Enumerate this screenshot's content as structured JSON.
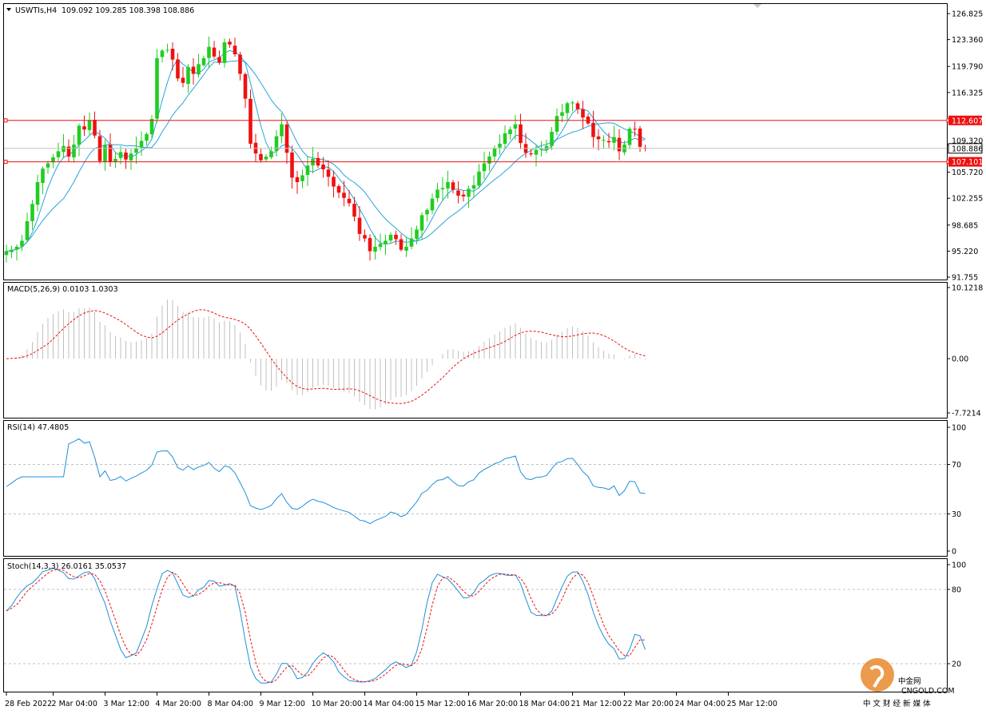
{
  "header": {
    "symbol": "USWTIs,H4",
    "ohlc": "109.092 109.285 108.398 108.886"
  },
  "colors": {
    "bull": "#22cc22",
    "bear": "#ee1111",
    "ma": "#29a3dd",
    "level": "#ee1111",
    "signal": "#ee1111",
    "rsi": "#1e90d8",
    "hist": "#c0c0c0"
  },
  "watermark": {
    "name": "中金网",
    "domain": "CNGOLD.COM",
    "slogan": "中 文 财 经 新 媒 体"
  },
  "chart_data": [
    {
      "type": "candlestick",
      "name": "USWTIs,H4",
      "ylim": [
        91.755,
        126.825
      ],
      "yticks": [
        "126.825",
        "123.360",
        "119.790",
        "116.325",
        "112.607",
        "109.320",
        "108.886",
        "107.101",
        "105.720",
        "102.255",
        "98.685",
        "95.220",
        "91.755"
      ],
      "current_price": "108.886",
      "levels": [
        {
          "value": 112.607,
          "label": "112.607"
        },
        {
          "value": 107.101,
          "label": "107.101"
        }
      ],
      "closes": [
        95.2,
        95.4,
        95.8,
        96.6,
        99.2,
        101.5,
        104.4,
        106.2,
        106.9,
        107.7,
        108.5,
        109.2,
        107.8,
        109.4,
        111.9,
        111.4,
        112.6,
        110.6,
        107.2,
        109.3,
        107.1,
        107.5,
        108.4,
        107.4,
        108.2,
        108.9,
        109.9,
        110.8,
        112.8,
        120.9,
        121.9,
        122.0,
        120.7,
        118.2,
        117.6,
        119.7,
        118.8,
        120.1,
        120.9,
        122.4,
        121.1,
        120.3,
        123.0,
        122.7,
        121.4,
        118.8,
        115.5,
        109.5,
        108.2,
        107.3,
        107.8,
        108.5,
        110.5,
        112.1,
        108.3,
        105.0,
        104.4,
        105.3,
        106.6,
        107.5,
        106.6,
        106.1,
        105.1,
        103.8,
        103.0,
        102.3,
        101.6,
        99.8,
        97.5,
        96.9,
        95.2,
        95.8,
        96.2,
        96.6,
        97.4,
        96.8,
        95.4,
        95.8,
        96.9,
        98.1,
        100.0,
        100.7,
        102.2,
        103.4,
        103.6,
        104.4,
        103.4,
        102.6,
        102.5,
        103.5,
        104.0,
        105.8,
        106.9,
        107.8,
        108.9,
        109.5,
        110.9,
        111.4,
        112.1,
        109.6,
        108.3,
        108.1,
        108.7,
        108.8,
        109.2,
        111.1,
        113.2,
        113.7,
        114.9,
        115.0,
        114.1,
        113.0,
        112.2,
        110.4,
        110.1,
        110.0,
        109.7,
        110.4,
        108.5,
        109.4,
        111.5,
        111.4,
        109.1,
        108.9
      ],
      "x_labels": [
        {
          "i": 0,
          "label": "28 Feb 2022"
        },
        {
          "i": 9,
          "label": "2 Mar 04:00"
        },
        {
          "i": 19,
          "label": "3 Mar 12:00"
        },
        {
          "i": 29,
          "label": "4 Mar 20:00"
        },
        {
          "i": 39,
          "label": "8 Mar 04:00"
        },
        {
          "i": 49,
          "label": "9 Mar 12:00"
        },
        {
          "i": 59,
          "label": "10 Mar 20:00"
        },
        {
          "i": 69,
          "label": "14 Mar 04:00"
        },
        {
          "i": 79,
          "label": "15 Mar 12:00"
        },
        {
          "i": 89,
          "label": "16 Mar 20:00"
        },
        {
          "i": 99,
          "label": "18 Mar 04:00"
        },
        {
          "i": 109,
          "label": "21 Mar 12:00"
        },
        {
          "i": 119,
          "label": "22 Mar 20:00"
        },
        {
          "i": 129,
          "label": "24 Mar 04:00"
        },
        {
          "i": 139,
          "label": "25 Mar 12:00"
        }
      ]
    },
    {
      "type": "bar",
      "name": "MACD(5,26,9)",
      "title": "MACD(5,26,9) 0.0103 1.0303",
      "ylim": [
        -7.7214,
        10.1218
      ],
      "yticks": [
        "10.1218",
        "0.00",
        "-7.7214"
      ]
    },
    {
      "type": "line",
      "name": "RSI(14)",
      "title": "RSI(14) 47.4805",
      "ylim": [
        0,
        100
      ],
      "yticks": [
        "100",
        "70",
        "30",
        "0"
      ],
      "levels": [
        70,
        30
      ]
    },
    {
      "type": "line",
      "name": "Stoch(14,3,3)",
      "title": "Stoch(14,3,3) 26.0161 35.0537",
      "ylim": [
        0,
        100
      ],
      "yticks": [
        "100",
        "80",
        "20"
      ],
      "levels": [
        80,
        20
      ]
    }
  ]
}
